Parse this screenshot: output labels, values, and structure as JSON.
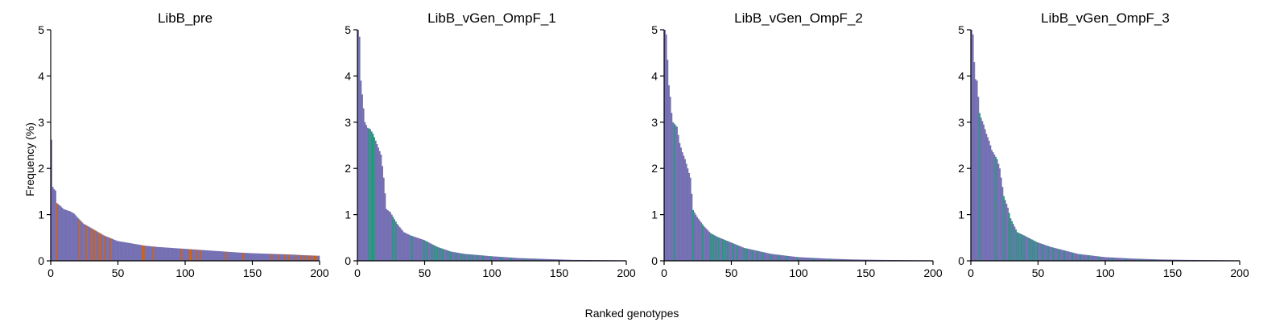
{
  "figure": {
    "xlabel": "Ranked genotypes",
    "ylabel": "Frequency (%)"
  },
  "colors": {
    "base": "#7570b3",
    "highlight_pre": "#d95f02",
    "highlight_post": "#1b9e77"
  },
  "chart_data": [
    {
      "type": "bar",
      "title": "LibB_pre",
      "xlim": [
        0,
        200
      ],
      "ylim": [
        0,
        5
      ],
      "xticks": [
        "0",
        "50",
        "100",
        "150",
        "200"
      ],
      "yticks": [
        "0",
        "1",
        "2",
        "3",
        "4",
        "5"
      ],
      "n_bars": 200,
      "anchors_x": [
        1,
        2,
        3,
        4,
        5,
        8,
        10,
        12,
        15,
        18,
        20,
        25,
        30,
        40,
        50,
        60,
        70,
        80,
        90,
        100,
        110,
        120,
        130,
        140,
        150,
        160,
        170,
        180,
        190,
        200
      ],
      "anchors_y": [
        2.62,
        1.6,
        1.55,
        1.52,
        1.25,
        1.18,
        1.12,
        1.1,
        1.07,
        1.02,
        0.95,
        0.8,
        0.72,
        0.55,
        0.43,
        0.38,
        0.33,
        0.3,
        0.28,
        0.26,
        0.24,
        0.22,
        0.2,
        0.18,
        0.165,
        0.155,
        0.145,
        0.135,
        0.12,
        0.11
      ],
      "highlight": [
        5,
        22,
        27,
        31,
        33,
        36,
        38,
        41,
        45,
        69,
        70,
        77,
        98,
        104,
        105,
        109,
        112,
        131,
        144,
        165,
        170,
        175,
        178,
        183,
        187,
        190,
        193,
        195,
        197,
        198
      ],
      "highlight_color": "highlight_pre"
    },
    {
      "type": "bar",
      "title": "LibB_vGen_OmpF_1",
      "xlim": [
        0,
        200
      ],
      "ylim": [
        0,
        5
      ],
      "xticks": [
        "0",
        "50",
        "100",
        "150",
        "200"
      ],
      "yticks": [
        "0",
        "1",
        "2",
        "3",
        "4",
        "5"
      ],
      "n_bars": 200,
      "anchors_x": [
        1,
        2,
        3,
        4,
        5,
        6,
        8,
        10,
        12,
        14,
        16,
        18,
        20,
        22,
        25,
        30,
        35,
        40,
        50,
        60,
        70,
        80,
        100,
        120,
        140,
        160,
        200
      ],
      "anchors_y": [
        5.0,
        4.85,
        3.9,
        3.6,
        3.3,
        3.0,
        2.88,
        2.85,
        2.75,
        2.6,
        2.45,
        2.3,
        1.8,
        1.12,
        1.05,
        0.8,
        0.62,
        0.55,
        0.45,
        0.3,
        0.2,
        0.15,
        0.1,
        0.06,
        0.04,
        0.02,
        0.01
      ],
      "highlight": [
        9,
        11,
        12,
        13,
        27,
        29,
        41,
        50,
        52,
        56,
        58,
        60,
        62,
        64,
        68,
        70,
        74,
        78,
        80,
        84,
        86,
        90,
        94,
        100,
        108,
        115,
        125,
        133
      ],
      "highlight_color": "highlight_post"
    },
    {
      "type": "bar",
      "title": "LibB_vGen_OmpF_2",
      "xlim": [
        0,
        200
      ],
      "ylim": [
        0,
        5
      ],
      "xticks": [
        "0",
        "50",
        "100",
        "150",
        "200"
      ],
      "yticks": [
        "0",
        "1",
        "2",
        "3",
        "4",
        "5"
      ],
      "n_bars": 200,
      "anchors_x": [
        1,
        2,
        3,
        4,
        5,
        6,
        7,
        8,
        10,
        12,
        14,
        16,
        18,
        20,
        22,
        25,
        30,
        35,
        40,
        50,
        60,
        80,
        100,
        120,
        140,
        160,
        200
      ],
      "anchors_y": [
        5.0,
        4.9,
        4.35,
        3.8,
        3.55,
        3.2,
        3.0,
        2.97,
        2.9,
        2.55,
        2.35,
        2.2,
        2.0,
        1.8,
        1.1,
        0.95,
        0.75,
        0.6,
        0.52,
        0.4,
        0.28,
        0.15,
        0.08,
        0.05,
        0.03,
        0.02,
        0.01
      ],
      "highlight": [
        8,
        22,
        29,
        35,
        37,
        39,
        41,
        44,
        46,
        48,
        52,
        55,
        60,
        62,
        66,
        70,
        74,
        80,
        86,
        92,
        100,
        112,
        124
      ],
      "highlight_color": "highlight_post"
    },
    {
      "type": "bar",
      "title": "LibB_vGen_OmpF_3",
      "xlim": [
        0,
        200
      ],
      "ylim": [
        0,
        5
      ],
      "xticks": [
        "0",
        "50",
        "100",
        "150",
        "200"
      ],
      "yticks": [
        "0",
        "1",
        "2",
        "3",
        "4",
        "5"
      ],
      "n_bars": 200,
      "anchors_x": [
        1,
        2,
        3,
        4,
        5,
        6,
        7,
        8,
        10,
        12,
        14,
        16,
        18,
        20,
        22,
        25,
        28,
        30,
        35,
        40,
        50,
        60,
        80,
        100,
        120,
        140,
        160,
        200
      ],
      "anchors_y": [
        5.0,
        4.9,
        4.3,
        3.93,
        3.9,
        3.55,
        3.2,
        3.1,
        2.95,
        2.75,
        2.6,
        2.4,
        2.3,
        2.2,
        2.0,
        1.4,
        1.15,
        0.92,
        0.62,
        0.55,
        0.4,
        0.3,
        0.15,
        0.08,
        0.05,
        0.03,
        0.02,
        0.01
      ],
      "highlight": [
        7,
        19,
        25,
        29,
        31,
        34,
        36,
        38,
        40,
        44,
        46,
        48,
        50,
        54,
        58,
        62,
        66,
        70,
        76,
        82,
        88,
        96,
        106,
        116,
        126,
        136
      ],
      "highlight_color": "highlight_post"
    }
  ]
}
